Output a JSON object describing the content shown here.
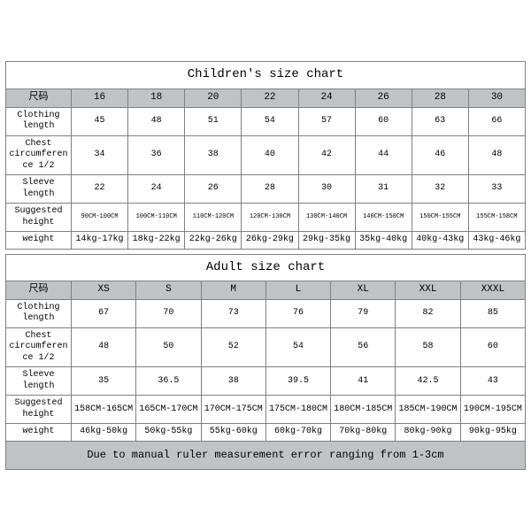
{
  "children": {
    "title": "Children's size chart",
    "size_label": "尺码",
    "sizes": [
      "16",
      "18",
      "20",
      "22",
      "24",
      "26",
      "28",
      "30"
    ],
    "rows": [
      {
        "label": "Clothing length",
        "vals": [
          "45",
          "48",
          "51",
          "54",
          "57",
          "60",
          "63",
          "66"
        ],
        "small": false
      },
      {
        "label": "Chest circumference 1/2",
        "vals": [
          "34",
          "36",
          "38",
          "40",
          "42",
          "44",
          "46",
          "48"
        ],
        "small": false
      },
      {
        "label": "Sleeve length",
        "vals": [
          "22",
          "24",
          "26",
          "28",
          "30",
          "31",
          "32",
          "33"
        ],
        "small": false
      },
      {
        "label": "Suggested height",
        "vals": [
          "90CM-100CM",
          "100CM-110CM",
          "110CM-120CM",
          "120CM-130CM",
          "130CM-140CM",
          "140CM-150CM",
          "150CM-155CM",
          "155CM-158CM"
        ],
        "small": true
      },
      {
        "label": "weight",
        "vals": [
          "14kg-17kg",
          "18kg-22kg",
          "22kg-26kg",
          "26kg-29kg",
          "29kg-35kg",
          "35kg-40kg",
          "40kg-43kg",
          "43kg-46kg"
        ],
        "small": false
      }
    ]
  },
  "adult": {
    "title": "Adult size chart",
    "size_label": "尺码",
    "sizes": [
      "XS",
      "S",
      "M",
      "L",
      "XL",
      "XXL",
      "XXXL"
    ],
    "rows": [
      {
        "label": "Clothing length",
        "vals": [
          "67",
          "70",
          "73",
          "76",
          "79",
          "82",
          "85"
        ],
        "small": false
      },
      {
        "label": "Chest circumference 1/2",
        "vals": [
          "48",
          "50",
          "52",
          "54",
          "56",
          "58",
          "60"
        ],
        "small": false
      },
      {
        "label": "Sleeve length",
        "vals": [
          "35",
          "36.5",
          "38",
          "39.5",
          "41",
          "42.5",
          "43"
        ],
        "small": false
      },
      {
        "label": "Suggested height",
        "vals": [
          "158CM-165CM",
          "165CM-170CM",
          "170CM-175CM",
          "175CM-180CM",
          "180CM-185CM",
          "185CM-190CM",
          "190CM-195CM"
        ],
        "small": false
      },
      {
        "label": "weight",
        "vals": [
          "46kg-50kg",
          "50kg-55kg",
          "55kg-60kg",
          "60kg-70kg",
          "70kg-80kg",
          "80kg-90kg",
          "90kg-95kg"
        ],
        "small": false
      }
    ],
    "note": "Due to manual ruler measurement error ranging from 1-3cm"
  },
  "style": {
    "header_bg": "#c0c3c5",
    "border_color": "#808080",
    "body_bg": "#ffffff"
  }
}
